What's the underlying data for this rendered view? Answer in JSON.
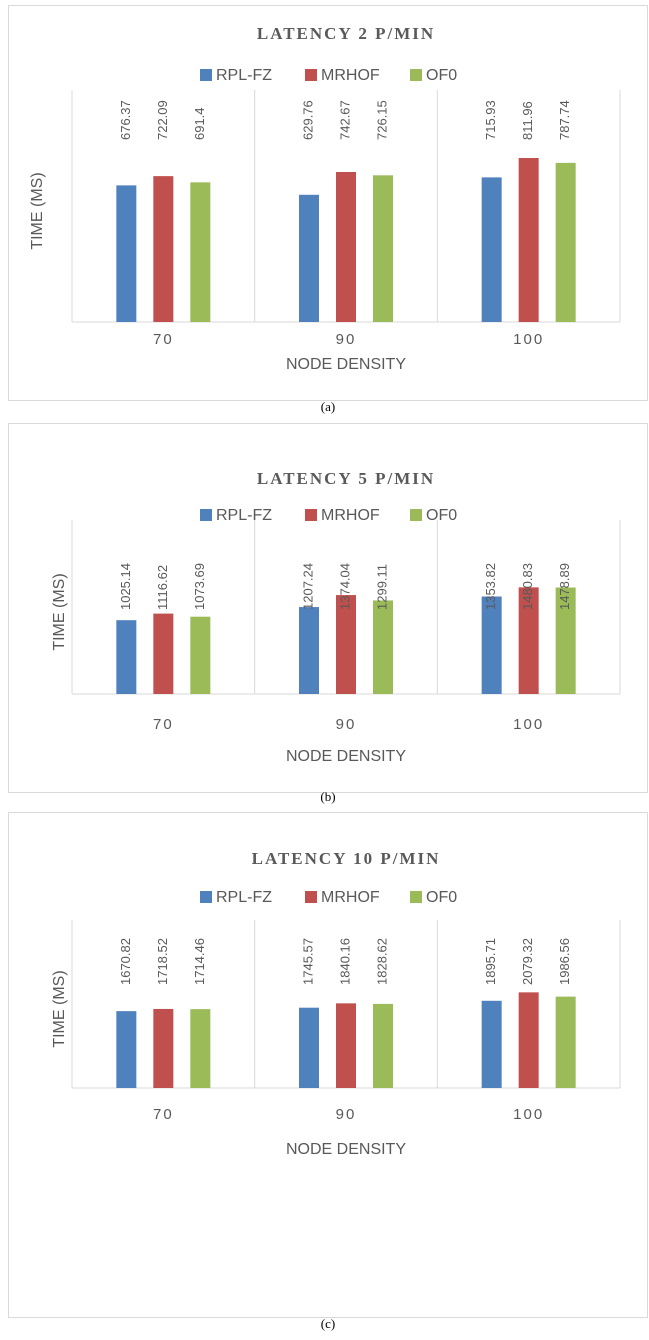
{
  "chart_data": [
    {
      "type": "bar",
      "title": "LATENCY 2 P/MIN",
      "caption": "(a)",
      "x_label": "NODE DENSITY",
      "y_label": "TIME (MS)",
      "categories": [
        "70",
        "90",
        "100"
      ],
      "ylim": [
        0,
        1000
      ],
      "series": [
        {
          "name": "RPL-FZ",
          "color": "#4f81bd",
          "values": [
            676.37,
            629.76,
            715.93
          ],
          "value_labels": [
            "676.37",
            "629.76",
            "715.93"
          ]
        },
        {
          "name": "MRHOF",
          "color": "#c0504d",
          "values": [
            722.09,
            742.67,
            811.96
          ],
          "value_labels": [
            "722.09",
            "742.67",
            "811.96"
          ]
        },
        {
          "name": "OF0",
          "color": "#9bbb59",
          "values": [
            691.4,
            726.15,
            787.74
          ],
          "value_labels": [
            "691.4",
            "726.15",
            "787.74"
          ]
        }
      ]
    },
    {
      "type": "bar",
      "title": "LATENCY 5 P/MIN",
      "caption": "(b)",
      "x_label": "NODE DENSITY",
      "y_label": "TIME (MS)",
      "categories": [
        "70",
        "90",
        "100"
      ],
      "ylim": [
        0,
        2000
      ],
      "series": [
        {
          "name": "RPL-FZ",
          "color": "#4f81bd",
          "values": [
            1025.14,
            1207.24,
            1353.82
          ],
          "value_labels": [
            "1025.14",
            "1207.24",
            "1353.82"
          ]
        },
        {
          "name": "MRHOF",
          "color": "#c0504d",
          "values": [
            1116.62,
            1374.04,
            1480.83
          ],
          "value_labels": [
            "1116.62",
            "1374.04",
            "1480.83"
          ]
        },
        {
          "name": "OF0",
          "color": "#9bbb59",
          "values": [
            1073.69,
            1299.11,
            1478.89
          ],
          "value_labels": [
            "1073.69",
            "1299.11",
            "1478.89"
          ]
        }
      ]
    },
    {
      "type": "bar",
      "title": "LATENCY 10 P/MIN",
      "caption": "(c)",
      "x_label": "NODE DENSITY",
      "y_label": "TIME (MS)",
      "categories": [
        "70",
        "90",
        "100"
      ],
      "ylim": [
        0,
        3000
      ],
      "series": [
        {
          "name": "RPL-FZ",
          "color": "#4f81bd",
          "values": [
            1670.82,
            1745.57,
            1895.71
          ],
          "value_labels": [
            "1670.82",
            "1745.57",
            "1895.71"
          ]
        },
        {
          "name": "MRHOF",
          "color": "#c0504d",
          "values": [
            1718.52,
            1840.16,
            2079.32
          ],
          "value_labels": [
            "1718.52",
            "1840.16",
            "2079.32"
          ]
        },
        {
          "name": "OF0",
          "color": "#9bbb59",
          "values": [
            1714.46,
            1828.62,
            1986.56
          ],
          "value_labels": [
            "1714.46",
            "1828.62",
            "1986.56"
          ]
        }
      ]
    }
  ]
}
